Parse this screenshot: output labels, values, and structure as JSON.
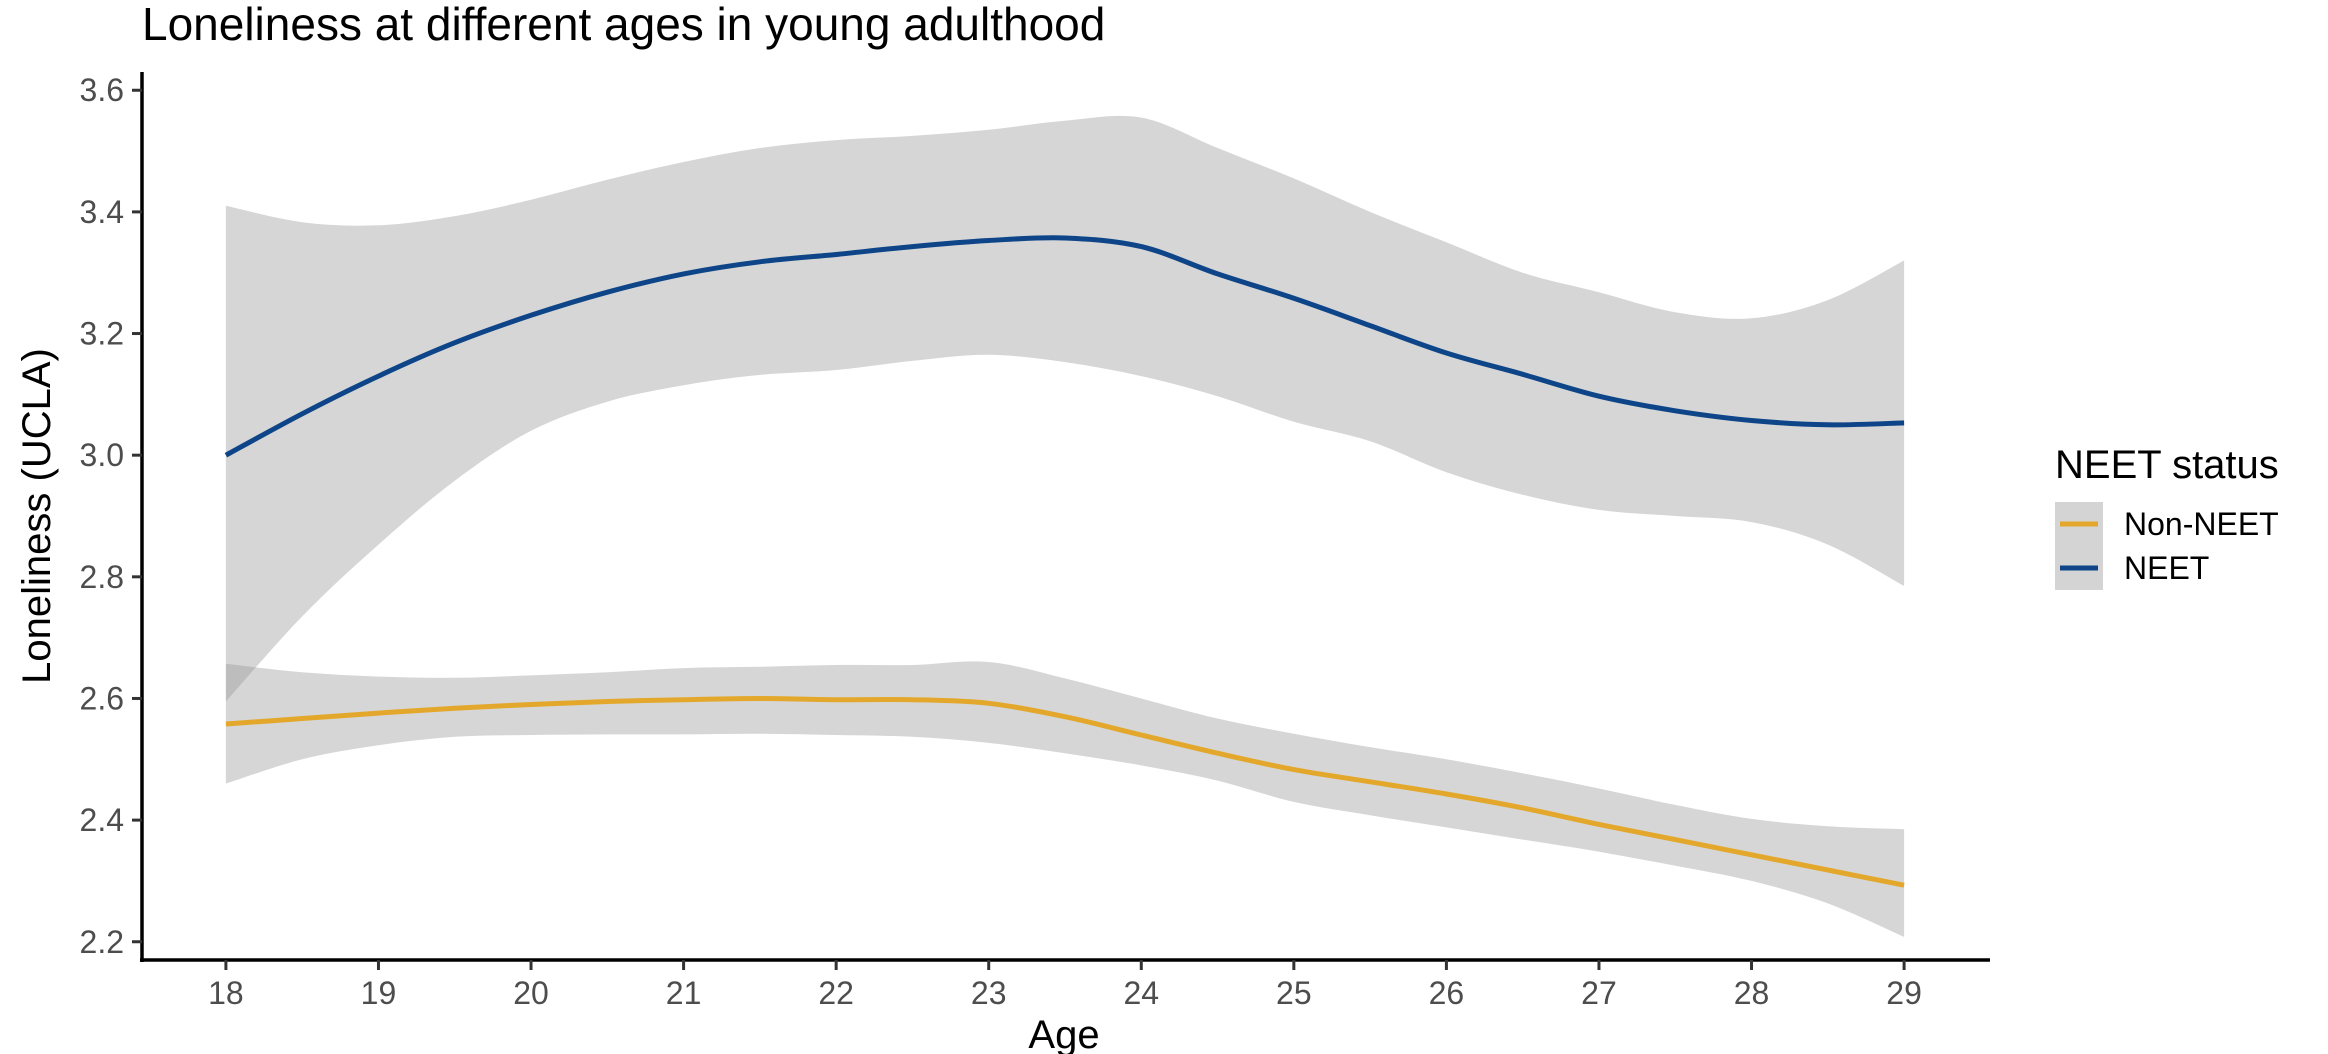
{
  "chart_data": {
    "type": "line",
    "title": "Loneliness at different ages in young adulthood",
    "xlabel": "Age",
    "ylabel": "Loneliness (UCLA)",
    "xlim": [
      17.45,
      29.55
    ],
    "ylim": [
      2.17,
      3.63
    ],
    "x_ticks": [
      "18",
      "19",
      "20",
      "21",
      "22",
      "23",
      "24",
      "25",
      "26",
      "27",
      "28",
      "29"
    ],
    "y_ticks": [
      "2.2",
      "2.4",
      "2.6",
      "2.8",
      "3.0",
      "3.2",
      "3.4",
      "3.6"
    ],
    "grid": false,
    "legend": {
      "title": "NEET status",
      "position": "right"
    },
    "x": [
      18,
      18.5,
      19,
      19.5,
      20,
      20.5,
      21,
      21.5,
      22,
      22.5,
      23,
      23.5,
      24,
      24.5,
      25,
      25.5,
      26,
      26.5,
      27,
      27.5,
      28,
      28.5,
      29
    ],
    "series": [
      {
        "name": "Non-NEET",
        "color": "#E3A82B",
        "values": [
          2.558,
          2.567,
          2.576,
          2.584,
          2.59,
          2.595,
          2.598,
          2.6,
          2.598,
          2.598,
          2.592,
          2.57,
          2.54,
          2.51,
          2.483,
          2.463,
          2.443,
          2.42,
          2.393,
          2.368,
          2.343,
          2.318,
          2.293
        ],
        "ci_low": [
          2.46,
          2.5,
          2.523,
          2.537,
          2.54,
          2.541,
          2.541,
          2.542,
          2.54,
          2.537,
          2.527,
          2.51,
          2.49,
          2.465,
          2.43,
          2.408,
          2.388,
          2.368,
          2.348,
          2.325,
          2.3,
          2.263,
          2.208
        ],
        "ci_high": [
          2.657,
          2.643,
          2.636,
          2.634,
          2.638,
          2.643,
          2.65,
          2.652,
          2.655,
          2.655,
          2.66,
          2.633,
          2.6,
          2.567,
          2.542,
          2.52,
          2.5,
          2.477,
          2.452,
          2.425,
          2.402,
          2.39,
          2.385
        ]
      },
      {
        "name": "NEET",
        "color": "#0D4588",
        "values": [
          3.0,
          3.068,
          3.13,
          3.185,
          3.23,
          3.268,
          3.298,
          3.318,
          3.33,
          3.343,
          3.353,
          3.357,
          3.343,
          3.298,
          3.258,
          3.213,
          3.168,
          3.133,
          3.097,
          3.073,
          3.057,
          3.05,
          3.053
        ],
        "ci_low": [
          2.595,
          2.735,
          2.853,
          2.958,
          3.04,
          3.088,
          3.115,
          3.132,
          3.14,
          3.155,
          3.165,
          3.153,
          3.13,
          3.097,
          3.055,
          3.023,
          2.972,
          2.935,
          2.91,
          2.9,
          2.89,
          2.853,
          2.785
        ],
        "ci_high": [
          3.41,
          3.383,
          3.378,
          3.393,
          3.42,
          3.453,
          3.482,
          3.505,
          3.518,
          3.525,
          3.535,
          3.55,
          3.555,
          3.505,
          3.455,
          3.4,
          3.35,
          3.3,
          3.268,
          3.235,
          3.225,
          3.255,
          3.32
        ]
      }
    ]
  }
}
